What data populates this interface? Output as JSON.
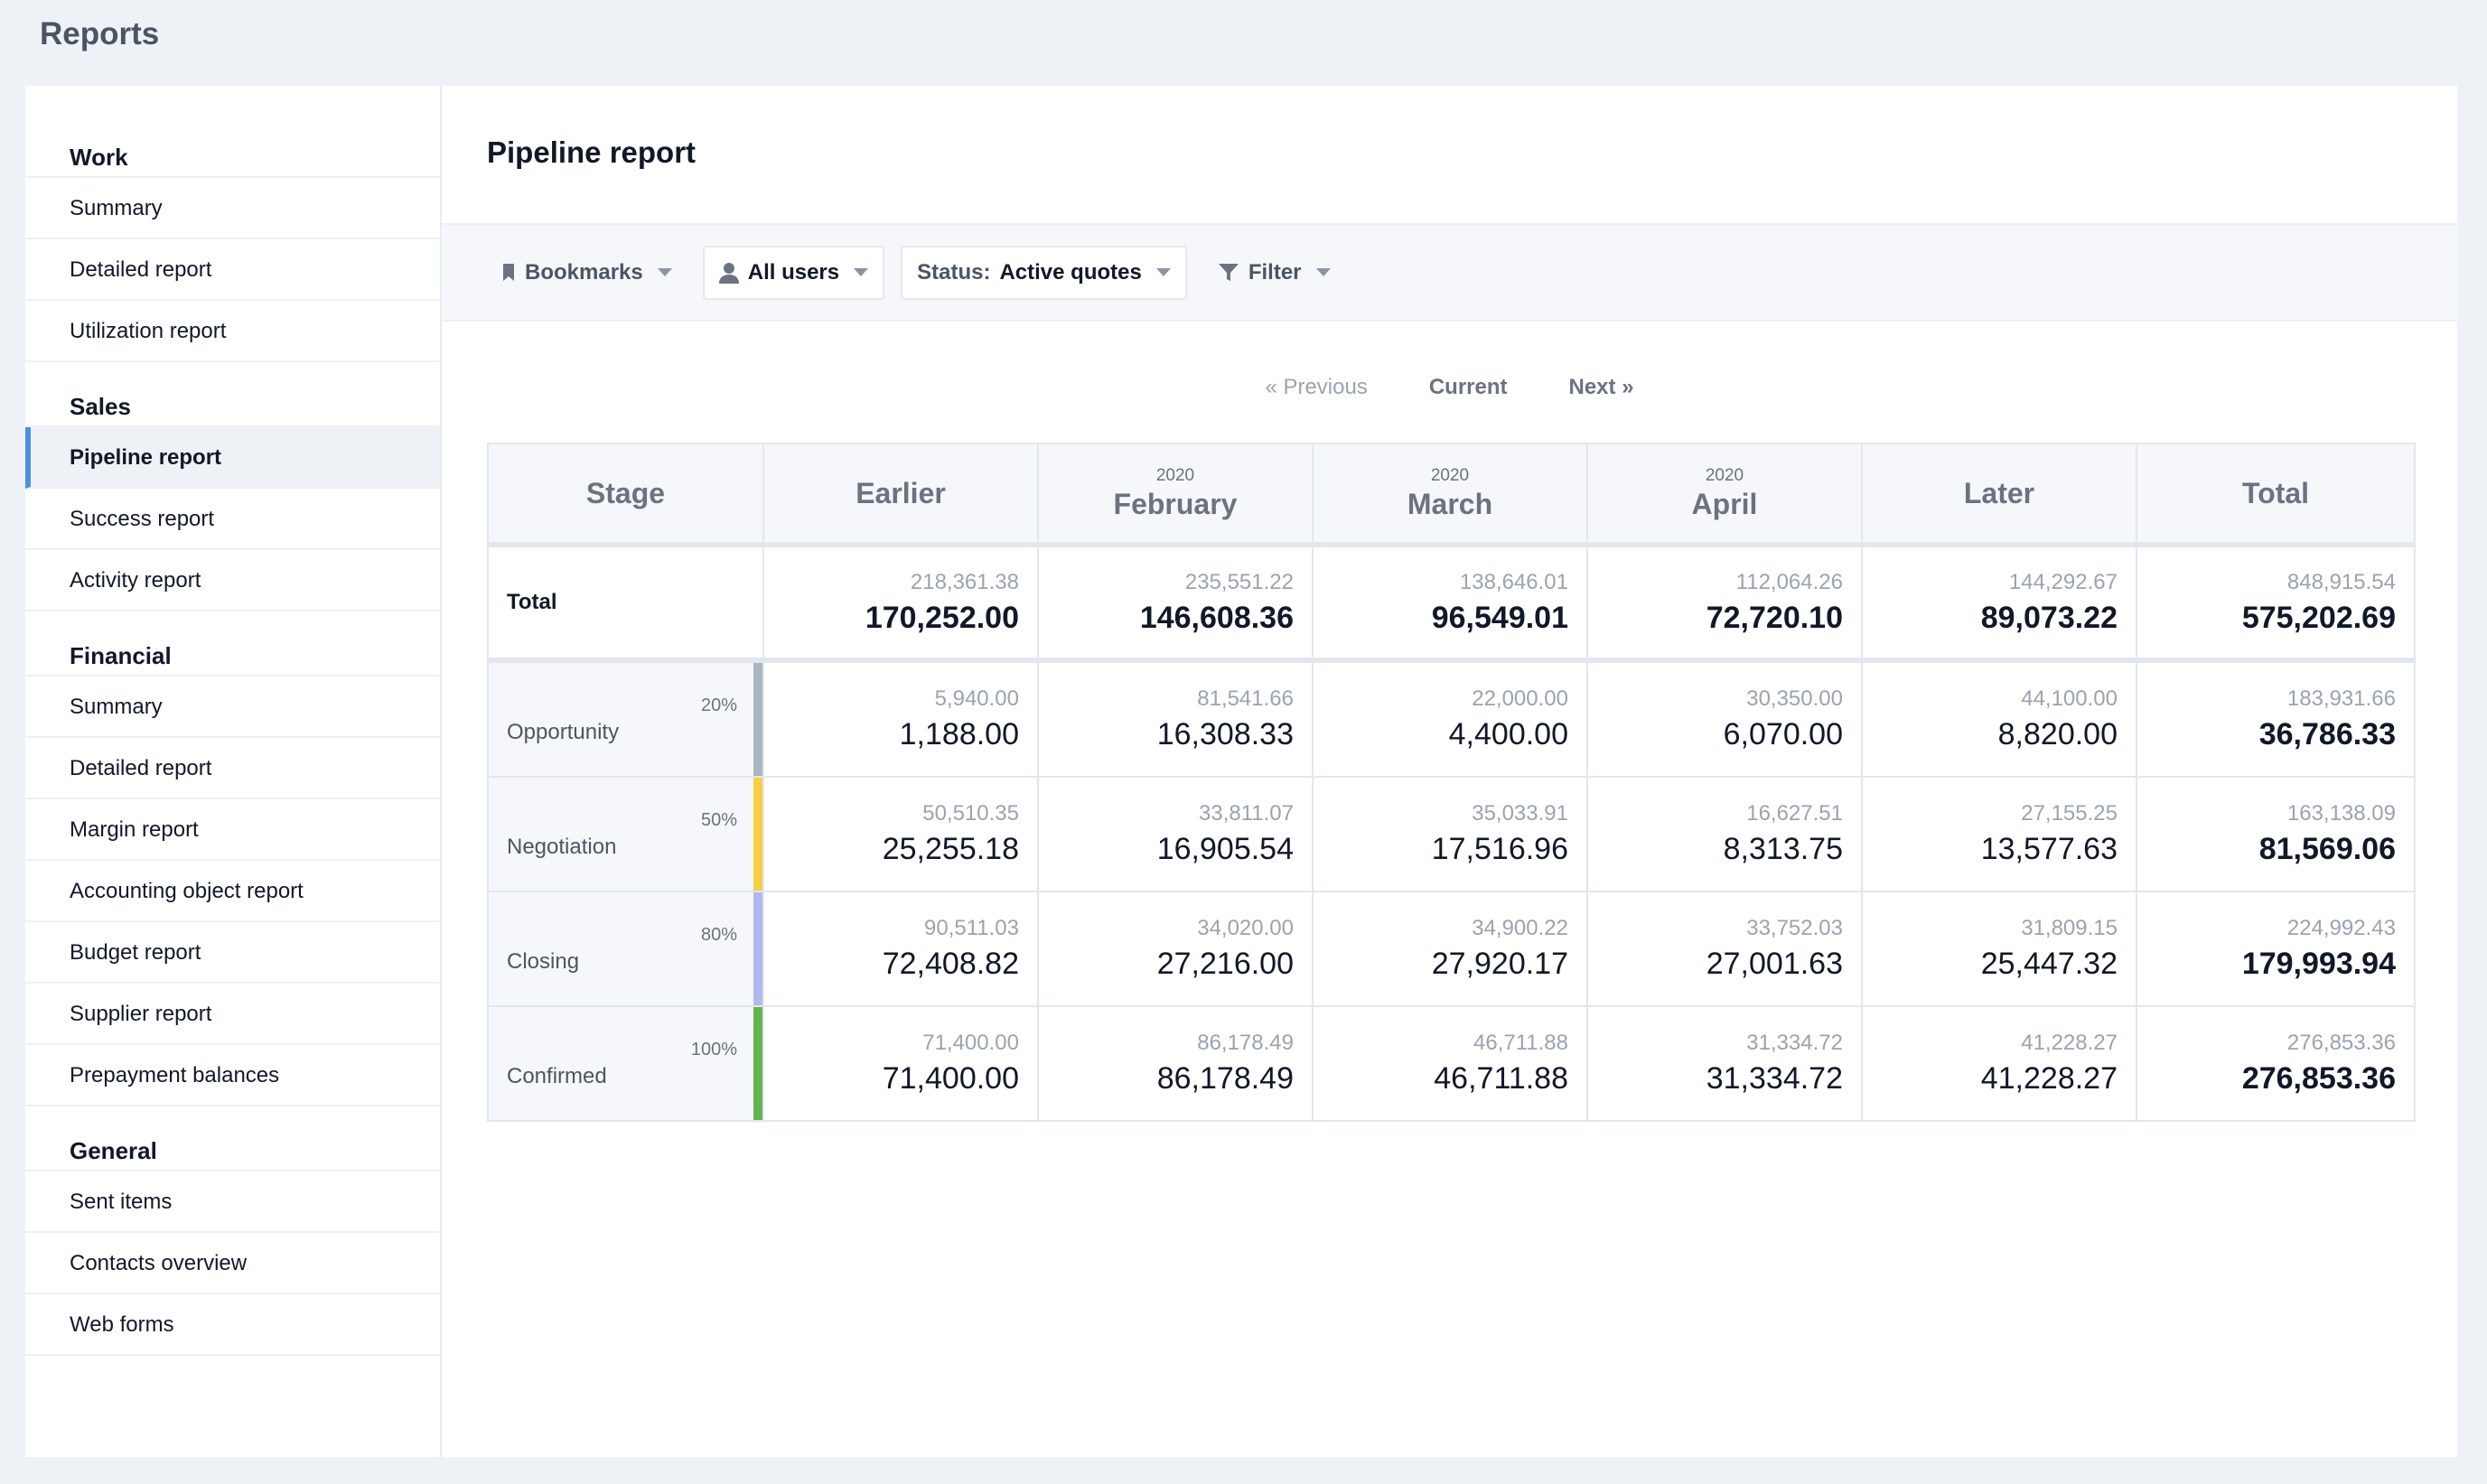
{
  "app": {
    "title": "Reports"
  },
  "sidebar": {
    "sections": [
      {
        "heading": "Work",
        "items": [
          "Summary",
          "Detailed report",
          "Utilization report"
        ]
      },
      {
        "heading": "Sales",
        "items": [
          "Pipeline report",
          "Success report",
          "Activity report"
        ]
      },
      {
        "heading": "Financial",
        "items": [
          "Summary",
          "Detailed report",
          "Margin report",
          "Accounting object report",
          "Budget report",
          "Supplier report",
          "Prepayment balances"
        ]
      },
      {
        "heading": "General",
        "items": [
          "Sent items",
          "Contacts overview",
          "Web forms"
        ]
      }
    ],
    "active": "Pipeline report"
  },
  "main": {
    "title": "Pipeline report",
    "toolbar": {
      "bookmarks": "Bookmarks",
      "users": "All users",
      "status_prefix": "Status:",
      "status_value": "Active quotes",
      "filter": "Filter"
    },
    "pager": {
      "previous": "« Previous",
      "current": "Current",
      "next": "Next »"
    },
    "table": {
      "columns": [
        {
          "year": "",
          "label": "Stage"
        },
        {
          "year": "",
          "label": "Earlier"
        },
        {
          "year": "2020",
          "label": "February"
        },
        {
          "year": "2020",
          "label": "March"
        },
        {
          "year": "2020",
          "label": "April"
        },
        {
          "year": "",
          "label": "Later"
        },
        {
          "year": "",
          "label": "Total"
        }
      ],
      "total": {
        "label": "Total",
        "cells": [
          {
            "sub": "218,361.38",
            "big": "170,252.00"
          },
          {
            "sub": "235,551.22",
            "big": "146,608.36"
          },
          {
            "sub": "138,646.01",
            "big": "96,549.01"
          },
          {
            "sub": "112,064.26",
            "big": "72,720.10"
          },
          {
            "sub": "144,292.67",
            "big": "89,073.22"
          },
          {
            "sub": "848,915.54",
            "big": "575,202.69"
          }
        ]
      },
      "stages": [
        {
          "label": "Opportunity",
          "pct": "20%",
          "color": "#a9b5c2",
          "cells": [
            {
              "sub": "5,940.00",
              "big": "1,188.00"
            },
            {
              "sub": "81,541.66",
              "big": "16,308.33"
            },
            {
              "sub": "22,000.00",
              "big": "4,400.00"
            },
            {
              "sub": "30,350.00",
              "big": "6,070.00"
            },
            {
              "sub": "44,100.00",
              "big": "8,820.00"
            },
            {
              "sub": "183,931.66",
              "big": "36,786.33"
            }
          ]
        },
        {
          "label": "Negotiation",
          "pct": "50%",
          "color": "#f6cf45",
          "cells": [
            {
              "sub": "50,510.35",
              "big": "25,255.18"
            },
            {
              "sub": "33,811.07",
              "big": "16,905.54"
            },
            {
              "sub": "35,033.91",
              "big": "17,516.96"
            },
            {
              "sub": "16,627.51",
              "big": "8,313.75"
            },
            {
              "sub": "27,155.25",
              "big": "13,577.63"
            },
            {
              "sub": "163,138.09",
              "big": "81,569.06"
            }
          ]
        },
        {
          "label": "Closing",
          "pct": "80%",
          "color": "#b1b9f0",
          "cells": [
            {
              "sub": "90,511.03",
              "big": "72,408.82"
            },
            {
              "sub": "34,020.00",
              "big": "27,216.00"
            },
            {
              "sub": "34,900.22",
              "big": "27,920.17"
            },
            {
              "sub": "33,752.03",
              "big": "27,001.63"
            },
            {
              "sub": "31,809.15",
              "big": "25,447.32"
            },
            {
              "sub": "224,992.43",
              "big": "179,993.94"
            }
          ]
        },
        {
          "label": "Confirmed",
          "pct": "100%",
          "color": "#63b64f",
          "cells": [
            {
              "sub": "71,400.00",
              "big": "71,400.00"
            },
            {
              "sub": "86,178.49",
              "big": "86,178.49"
            },
            {
              "sub": "46,711.88",
              "big": "46,711.88"
            },
            {
              "sub": "31,334.72",
              "big": "31,334.72"
            },
            {
              "sub": "41,228.27",
              "big": "41,228.27"
            },
            {
              "sub": "276,853.36",
              "big": "276,853.36"
            }
          ]
        }
      ]
    }
  }
}
